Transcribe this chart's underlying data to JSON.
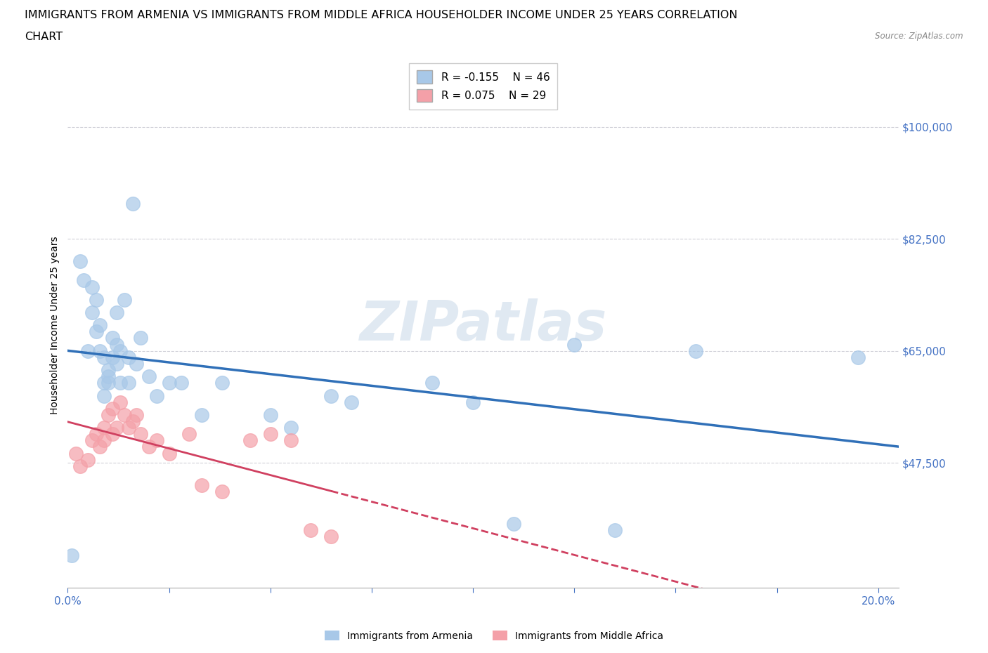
{
  "title_line1": "IMMIGRANTS FROM ARMENIA VS IMMIGRANTS FROM MIDDLE AFRICA HOUSEHOLDER INCOME UNDER 25 YEARS CORRELATION",
  "title_line2": "CHART",
  "source": "Source: ZipAtlas.com",
  "ylabel": "Householder Income Under 25 years",
  "xlim": [
    0.0,
    0.205
  ],
  "ylim": [
    28000,
    110000
  ],
  "yticks": [
    47500,
    65000,
    82500,
    100000
  ],
  "ytick_labels": [
    "$47,500",
    "$65,000",
    "$82,500",
    "$100,000"
  ],
  "xticks": [
    0.0,
    0.025,
    0.05,
    0.075,
    0.1,
    0.125,
    0.15,
    0.175,
    0.2
  ],
  "xtick_labels": [
    "0.0%",
    "",
    "",
    "",
    "",
    "",
    "",
    "",
    "20.0%"
  ],
  "color_armenia": "#a8c8e8",
  "color_middle_africa": "#f4a0a8",
  "color_armenia_line": "#3070b8",
  "color_middle_africa_line": "#d04060",
  "legend_r_armenia": "R = -0.155",
  "legend_n_armenia": "N = 46",
  "legend_r_middle_africa": "R = 0.075",
  "legend_n_middle_africa": "N = 29",
  "legend_label_armenia": "Immigrants from Armenia",
  "legend_label_middle_africa": "Immigrants from Middle Africa",
  "watermark": "ZIPatlas",
  "armenia_x": [
    0.001,
    0.003,
    0.004,
    0.005,
    0.006,
    0.006,
    0.007,
    0.007,
    0.008,
    0.008,
    0.009,
    0.009,
    0.009,
    0.01,
    0.01,
    0.01,
    0.011,
    0.011,
    0.012,
    0.012,
    0.012,
    0.013,
    0.013,
    0.014,
    0.015,
    0.015,
    0.016,
    0.017,
    0.018,
    0.02,
    0.022,
    0.025,
    0.028,
    0.033,
    0.038,
    0.05,
    0.055,
    0.065,
    0.07,
    0.09,
    0.1,
    0.11,
    0.125,
    0.135,
    0.155,
    0.195
  ],
  "armenia_y": [
    33000,
    79000,
    76000,
    65000,
    75000,
    71000,
    68000,
    73000,
    65000,
    69000,
    60000,
    64000,
    58000,
    62000,
    60000,
    61000,
    64000,
    67000,
    63000,
    66000,
    71000,
    65000,
    60000,
    73000,
    60000,
    64000,
    88000,
    63000,
    67000,
    61000,
    58000,
    60000,
    60000,
    55000,
    60000,
    55000,
    53000,
    58000,
    57000,
    60000,
    57000,
    38000,
    66000,
    37000,
    65000,
    64000
  ],
  "middle_africa_x": [
    0.002,
    0.003,
    0.005,
    0.006,
    0.007,
    0.008,
    0.009,
    0.009,
    0.01,
    0.011,
    0.011,
    0.012,
    0.013,
    0.014,
    0.015,
    0.016,
    0.017,
    0.018,
    0.02,
    0.022,
    0.025,
    0.03,
    0.033,
    0.038,
    0.045,
    0.05,
    0.055,
    0.06,
    0.065
  ],
  "middle_africa_y": [
    49000,
    47000,
    48000,
    51000,
    52000,
    50000,
    51000,
    53000,
    55000,
    52000,
    56000,
    53000,
    57000,
    55000,
    53000,
    54000,
    55000,
    52000,
    50000,
    51000,
    49000,
    52000,
    44000,
    43000,
    51000,
    52000,
    51000,
    37000,
    36000
  ],
  "grid_color": "#d0d0d8",
  "background_color": "#ffffff",
  "tick_color": "#4472c4",
  "title_fontsize": 11.5,
  "axis_label_fontsize": 10,
  "tick_fontsize": 11,
  "legend_fontsize": 11
}
